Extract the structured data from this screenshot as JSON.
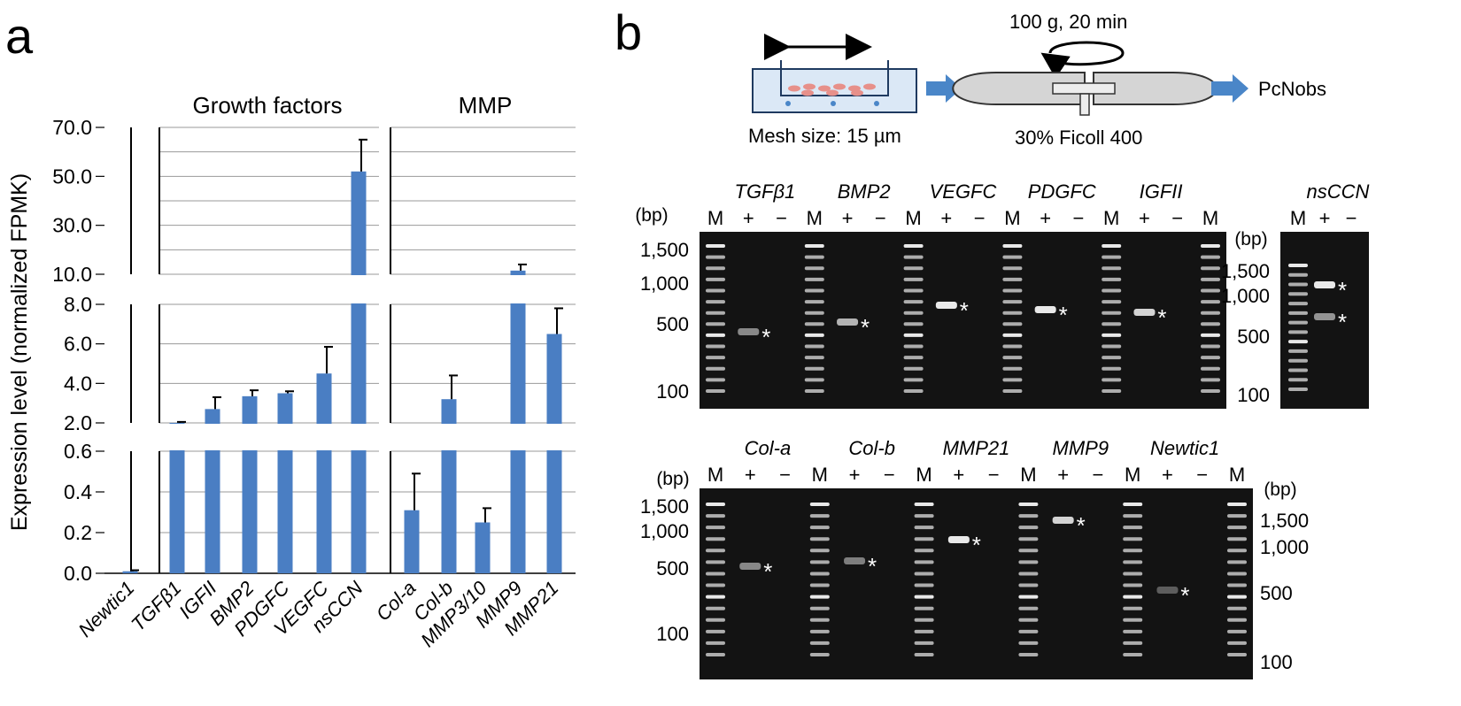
{
  "figure": {
    "panel_a_label": "a",
    "panel_b_label": "b"
  },
  "colors": {
    "bar": "#4a7ec3",
    "grid": "#9a9a9a",
    "axis": "#000000",
    "gel_bg": "#131313",
    "band": "#e9e9e9",
    "arrow": "#4a86c8"
  },
  "chart_data": {
    "type": "bar",
    "ylabel": "Expression level (normalized FPMK)",
    "groups": [
      {
        "label": "",
        "categories": [
          "Newtic1"
        ]
      },
      {
        "label": "Growth factors",
        "categories": [
          "TGFβ1",
          "IGFII",
          "BMP2",
          "PDGFC",
          "VEGFC",
          "nsCCN"
        ]
      },
      {
        "label": "MMP",
        "categories": [
          "Col-a",
          "Col-b",
          "MMP3/10",
          "MMP9",
          "MMP21"
        ]
      }
    ],
    "categories": [
      "Newtic1",
      "TGFβ1",
      "IGFII",
      "BMP2",
      "PDGFC",
      "VEGFC",
      "nsCCN",
      "Col-a",
      "Col-b",
      "MMP3/10",
      "MMP9",
      "MMP21"
    ],
    "values": [
      0.01,
      2.0,
      2.7,
      3.35,
      3.5,
      4.5,
      52.0,
      0.31,
      3.2,
      0.25,
      11.5,
      6.5
    ],
    "errors": [
      0.005,
      0.05,
      0.6,
      0.3,
      0.1,
      1.35,
      13.0,
      0.18,
      1.2,
      0.07,
      2.5,
      1.3
    ],
    "axis_segments": [
      {
        "range": [
          0.0,
          0.6
        ],
        "ticks": [
          "0.0",
          "0.2",
          "0.4",
          "0.6"
        ]
      },
      {
        "range": [
          2.0,
          8.0
        ],
        "ticks": [
          "2.0",
          "4.0",
          "6.0",
          "8.0"
        ]
      },
      {
        "range": [
          10.0,
          70.0
        ],
        "ticks": [
          "10.0",
          "30.0",
          "50.0",
          "70.0"
        ]
      }
    ],
    "grid": true
  },
  "schematic": {
    "shake_arrow_label": "",
    "mesh_label": "Mesh size: 15 µm",
    "spin_label": "100 g, 20 min",
    "ficoll_label": "30% Ficoll 400",
    "output_label": "PcNobs"
  },
  "gels": {
    "bp_unit": "(bp)",
    "marker_label": "M",
    "plus_label": "+",
    "minus_label": "−",
    "star": "*",
    "gel1": {
      "genes": [
        "TGFβ1",
        "BMP2",
        "VEGFC",
        "PDGFC",
        "IGFII"
      ],
      "lanes": [
        "M",
        "+",
        "−",
        "M",
        "+",
        "−",
        "M",
        "+",
        "−",
        "M",
        "+",
        "−",
        "M",
        "+",
        "−",
        "M"
      ],
      "size_labels": [
        "1,500",
        "1,000",
        "500",
        "100"
      ]
    },
    "gel2": {
      "genes": [
        "nsCCN"
      ],
      "lanes": [
        "M",
        "+",
        "−"
      ],
      "size_labels": [
        "1,500",
        "1,000",
        "500",
        "100"
      ]
    },
    "gel3": {
      "genes": [
        "Col-a",
        "Col-b",
        "MMP21",
        "MMP9",
        "Newtic1"
      ],
      "lanes": [
        "M",
        "+",
        "−",
        "M",
        "+",
        "−",
        "M",
        "+",
        "−",
        "M",
        "+",
        "−",
        "M",
        "+",
        "−",
        "M"
      ],
      "left_size_labels": [
        "1,500",
        "1,000",
        "500",
        "100"
      ],
      "right_size_labels": [
        "1,500",
        "1,000",
        "500",
        "100"
      ]
    }
  }
}
